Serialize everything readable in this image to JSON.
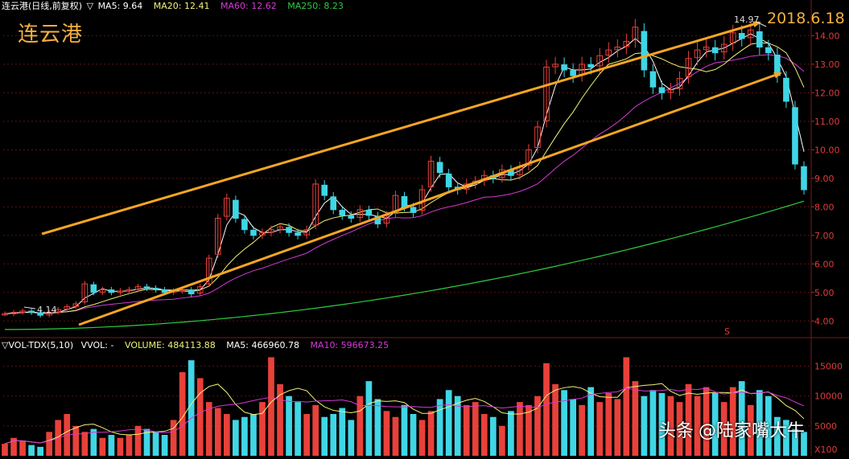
{
  "stock": {
    "name": "连云港",
    "header_title": "连云港(日线,前复权)",
    "triangle": "▽",
    "ma5": "MA5: 9.64",
    "ma20": "MA20: 12.41",
    "ma60": "MA60: 12.62",
    "ma250": "MA250: 8.23"
  },
  "volume_header": {
    "title": "▽VOL-TDX(5,10)",
    "vvol": "VVOL: -",
    "volume": "VOLUME: 484113.88",
    "ma5": "MA5: 466960.78",
    "ma10": "MA10: 596673.25"
  },
  "annotations": {
    "date": "2018.6.18",
    "high": "14.97",
    "low": "4.14",
    "marker": "S",
    "vol_unit": "X100"
  },
  "watermark": {
    "source": "头条",
    "author": "@陆家嘴大牛"
  },
  "colors": {
    "up": "#e8413a",
    "down": "#3fd6e6",
    "ma5": "#ffffff",
    "ma20": "#f2f27a",
    "ma60": "#d63ad6",
    "ma250": "#2ecc40",
    "trend": "#f5a623",
    "grid": "#5a1414"
  },
  "chart_data": [
    {
      "type": "candlestick",
      "yticks": [
        4.0,
        5.0,
        6.0,
        7.0,
        8.0,
        9.0,
        10.0,
        11.0,
        12.0,
        13.0,
        14.0
      ],
      "ytick_labels": [
        "4.00",
        "5.00",
        "6.00",
        "7.00",
        "8.00",
        "9.00",
        "10.00",
        "11.00",
        "12.00",
        "13.00",
        "14.00"
      ],
      "ylim": [
        3.5,
        14.8
      ],
      "high": 14.97,
      "low": 4.14,
      "close_approx": [
        4.25,
        4.3,
        4.35,
        4.3,
        4.2,
        4.3,
        4.4,
        4.5,
        4.6,
        5.3,
        5.0,
        5.1,
        5.0,
        5.05,
        5.1,
        5.2,
        5.15,
        5.1,
        5.0,
        5.05,
        5.1,
        4.95,
        5.2,
        6.2,
        7.6,
        8.3,
        7.6,
        7.2,
        7.0,
        7.1,
        7.2,
        7.3,
        7.1,
        7.0,
        7.2,
        8.8,
        8.4,
        7.9,
        7.7,
        7.6,
        7.9,
        7.7,
        7.4,
        7.7,
        8.4,
        8.0,
        7.8,
        8.6,
        9.6,
        9.2,
        8.7,
        8.6,
        8.8,
        8.9,
        9.1,
        9.0,
        9.3,
        9.1,
        9.4,
        10.0,
        10.8,
        12.9,
        13.0,
        12.8,
        12.6,
        13.0,
        12.9,
        13.3,
        13.5,
        13.6,
        13.8,
        14.3,
        12.8,
        12.2,
        12.0,
        12.1,
        12.5,
        13.2,
        13.5,
        13.6,
        13.4,
        13.7,
        14.1,
        13.9,
        14.2,
        13.6,
        13.4,
        12.6,
        11.7,
        9.5,
        8.6
      ]
    },
    {
      "type": "bar",
      "yticks": [
        5000,
        10000,
        15000
      ],
      "ytick_labels": [
        "5000",
        "10000",
        "15000"
      ],
      "ylim": [
        0,
        17500
      ],
      "values_approx": [
        2000,
        3000,
        2500,
        1800,
        1500,
        4000,
        6000,
        7000,
        5000,
        4000,
        4500,
        3000,
        3500,
        3000,
        3500,
        5000,
        4500,
        4000,
        3500,
        6000,
        14000,
        16000,
        13000,
        9000,
        8000,
        7000,
        6000,
        6500,
        7000,
        9000,
        16500,
        12000,
        10000,
        9000,
        7000,
        8500,
        6500,
        7000,
        8000,
        6000,
        10000,
        12500,
        9500,
        7500,
        6500,
        8500,
        7000,
        6000,
        7500,
        9500,
        11000,
        10000,
        8500,
        9000,
        7000,
        6500,
        5000,
        7500,
        9000,
        8500,
        10000,
        15500,
        12000,
        11000,
        9500,
        8500,
        11500,
        9000,
        10500,
        9500,
        16500,
        12500,
        10000,
        11000,
        10500,
        10000,
        9000,
        12000,
        10000,
        11500,
        10500,
        9000,
        11500,
        12500,
        8500,
        11000,
        10000,
        6500,
        6000,
        4500,
        4000
      ]
    }
  ]
}
